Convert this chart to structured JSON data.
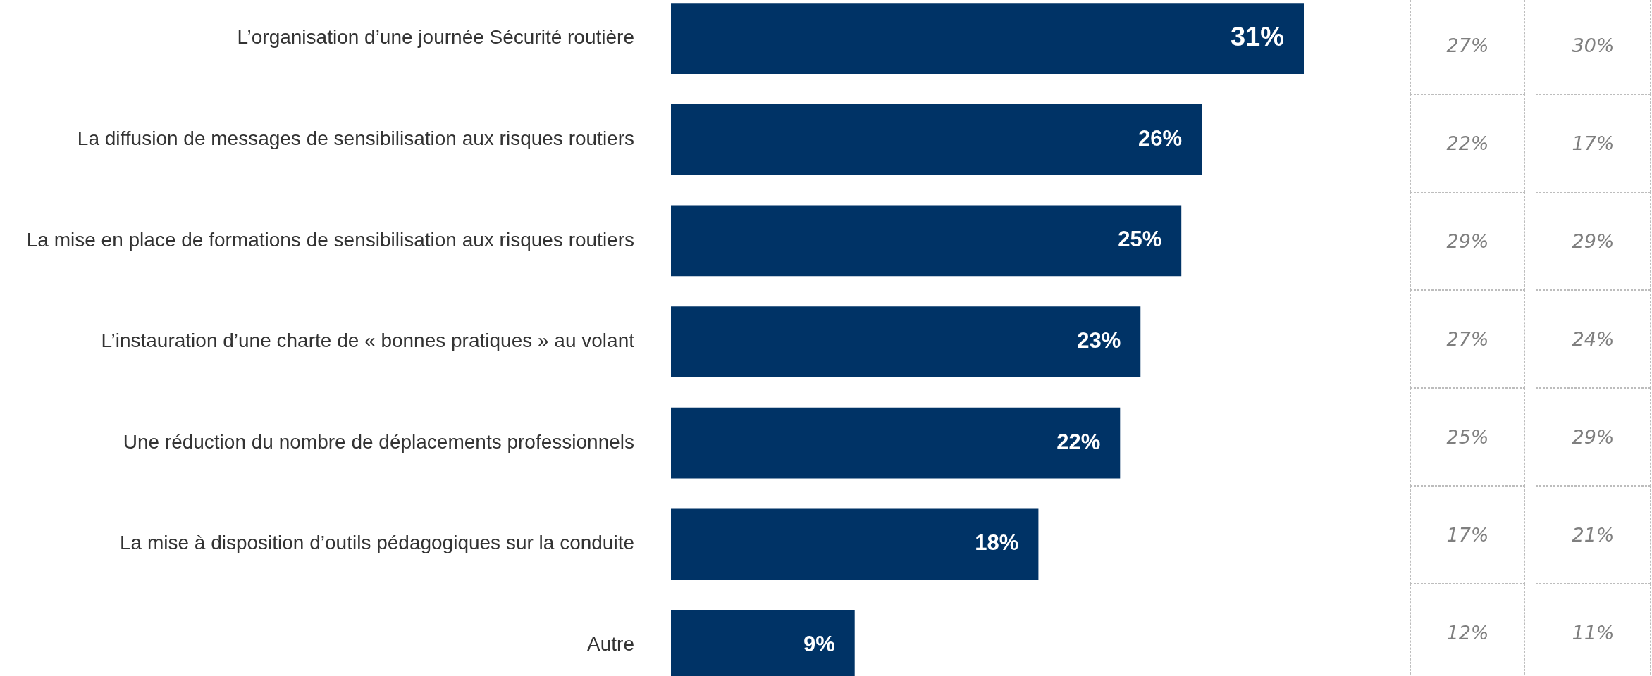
{
  "chart_data": {
    "type": "bar",
    "orientation": "horizontal",
    "categories": [
      "L’organisation d’une journée Sécurité routière",
      "La diffusion de messages de sensibilisation aux risques routiers",
      "La mise en place de formations de sensibilisation aux risques routiers",
      "L’instauration d’une charte de « bonnes pratiques » au volant",
      "Une réduction du nombre de déplacements professionnels",
      "La mise à disposition d’outils pédagogiques sur la conduite",
      "Autre"
    ],
    "values": [
      31,
      26,
      25,
      23,
      22,
      18,
      9
    ],
    "value_labels": [
      "31%",
      "26%",
      "25%",
      "23%",
      "22%",
      "18%",
      "9%"
    ],
    "color": "#003366",
    "annotations": [
      "27%",
      "30%",
      "22%",
      "17%",
      "29%",
      "29%",
      "27%",
      "24%",
      "25%",
      "29%",
      "17%",
      "21%",
      "12%",
      "11%"
    ]
  }
}
